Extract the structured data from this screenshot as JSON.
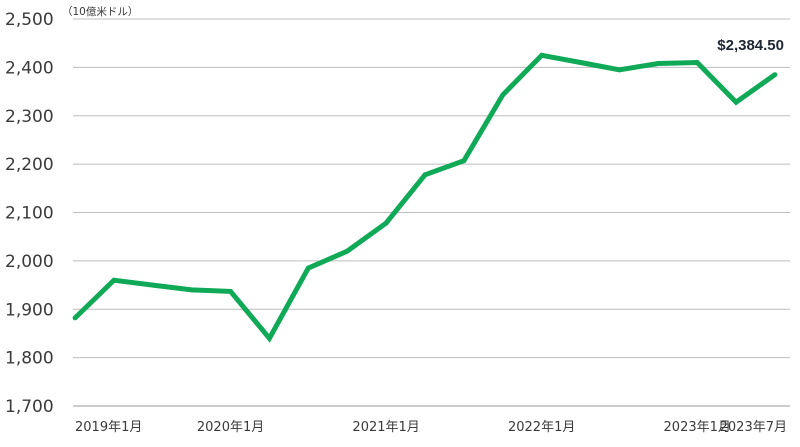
{
  "chart_data": {
    "type": "line",
    "unit_label": "（10億米ドル）",
    "end_label": "$2,384.50",
    "yticks": [
      1700,
      1800,
      1900,
      2000,
      2100,
      2200,
      2300,
      2400,
      2500
    ],
    "ytick_labels": [
      "1,700",
      "1,800",
      "1,900",
      "2,000",
      "2,100",
      "2,200",
      "2,300",
      "2,400",
      "2,500"
    ],
    "ylim": [
      1700,
      2500
    ],
    "xticks": [
      {
        "label": "2019年1月",
        "i": 0
      },
      {
        "label": "2020年1月",
        "i": 4
      },
      {
        "label": "2021年1月",
        "i": 8
      },
      {
        "label": "2022年1月",
        "i": 12
      },
      {
        "label": "2023年1月",
        "i": 16
      },
      {
        "label": "2023年7月",
        "i": 18
      }
    ],
    "x": [
      "2019-01",
      "2019-04",
      "2019-07",
      "2019-10",
      "2020-01",
      "2020-04",
      "2020-07",
      "2020-10",
      "2021-01",
      "2021-04",
      "2021-07",
      "2021-10",
      "2022-01",
      "2022-04",
      "2022-07",
      "2022-10",
      "2023-01",
      "2023-04",
      "2023-07"
    ],
    "series": [
      {
        "color": "#0fa958",
        "values": [
          1882,
          1960,
          1950,
          1940,
          1937,
          1840,
          1985,
          2020,
          2078,
          2178,
          2207,
          2343,
          2425,
          2410,
          2395,
          2408,
          2410,
          2328,
          2385
        ]
      }
    ],
    "grid": true
  }
}
